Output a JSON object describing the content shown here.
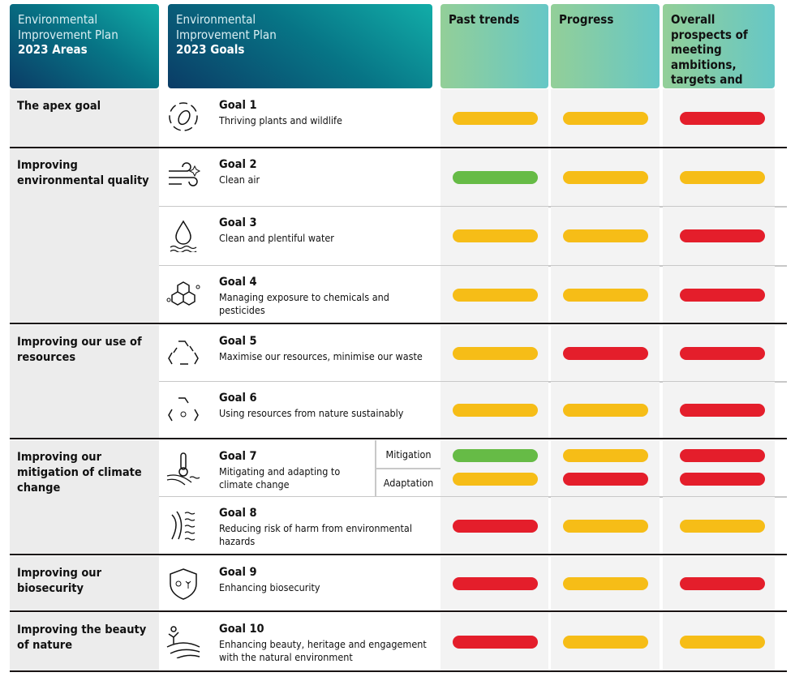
{
  "colors": {
    "green": "#66bb46",
    "amber": "#f6bd17",
    "red": "#e41e2b"
  },
  "header": {
    "areas": {
      "line1": "Environmental",
      "line2": "Improvement Plan",
      "line3": "2023 Areas"
    },
    "goals": {
      "line1": "Environmental",
      "line2": "Improvement Plan",
      "line3": "2023 Goals"
    },
    "past_trends": "Past trends",
    "progress": "Progress",
    "overall": "Overall prospects of meeting ambitions, targets and commitments"
  },
  "areas": [
    {
      "label": "The apex goal",
      "goals": [
        0
      ]
    },
    {
      "label": "Improving environmental quality",
      "goals": [
        1,
        2,
        3
      ]
    },
    {
      "label": "Improving our use of resources",
      "goals": [
        4,
        5
      ]
    },
    {
      "label": "Improving our mitigation of climate change",
      "goals": [
        6,
        7
      ]
    },
    {
      "label": "Improving our biosecurity",
      "goals": [
        8
      ]
    },
    {
      "label": "Improving the beauty of nature",
      "goals": [
        9
      ]
    }
  ],
  "goals": [
    {
      "title": "Goal 1",
      "desc": "Thriving plants and wildlife",
      "icon": "wildlife-icon",
      "status": [
        [
          "amber",
          "amber",
          "red"
        ]
      ]
    },
    {
      "title": "Goal 2",
      "desc": "Clean air",
      "icon": "clean-air-icon",
      "status": [
        [
          "green",
          "amber",
          "amber"
        ]
      ]
    },
    {
      "title": "Goal 3",
      "desc": "Clean and plentiful water",
      "icon": "water-drop-icon",
      "status": [
        [
          "amber",
          "amber",
          "red"
        ]
      ]
    },
    {
      "title": "Goal 4",
      "desc": "Managing exposure to chemicals and pesticides",
      "icon": "chemicals-icon",
      "status": [
        [
          "amber",
          "amber",
          "red"
        ]
      ]
    },
    {
      "title": "Goal 5",
      "desc": "Maximise our resources, minimise our waste",
      "icon": "recycle-icon",
      "status": [
        [
          "amber",
          "red",
          "red"
        ]
      ]
    },
    {
      "title": "Goal 6",
      "desc": "Using resources from nature sustainably",
      "icon": "recycle-nature-icon",
      "status": [
        [
          "amber",
          "amber",
          "red"
        ]
      ]
    },
    {
      "title": "Goal 7",
      "desc": "Mitigating and adapting to climate change",
      "icon": "thermometer-icon",
      "sub": [
        "Mitigation",
        "Adaptation"
      ],
      "status": [
        [
          "green",
          "amber",
          "red"
        ],
        [
          "amber",
          "red",
          "red"
        ]
      ]
    },
    {
      "title": "Goal 8",
      "desc": "Reducing risk of harm from environmental hazards",
      "icon": "hazards-icon",
      "status": [
        [
          "red",
          "amber",
          "amber"
        ]
      ]
    },
    {
      "title": "Goal 9",
      "desc": "Enhancing biosecurity",
      "icon": "biosecurity-shield-icon",
      "status": [
        [
          "red",
          "amber",
          "red"
        ]
      ]
    },
    {
      "title": "Goal 10",
      "desc": "Enhancing beauty, heritage and engagement with the natural environment",
      "icon": "landscape-icon",
      "status": [
        [
          "red",
          "amber",
          "amber"
        ]
      ]
    }
  ]
}
